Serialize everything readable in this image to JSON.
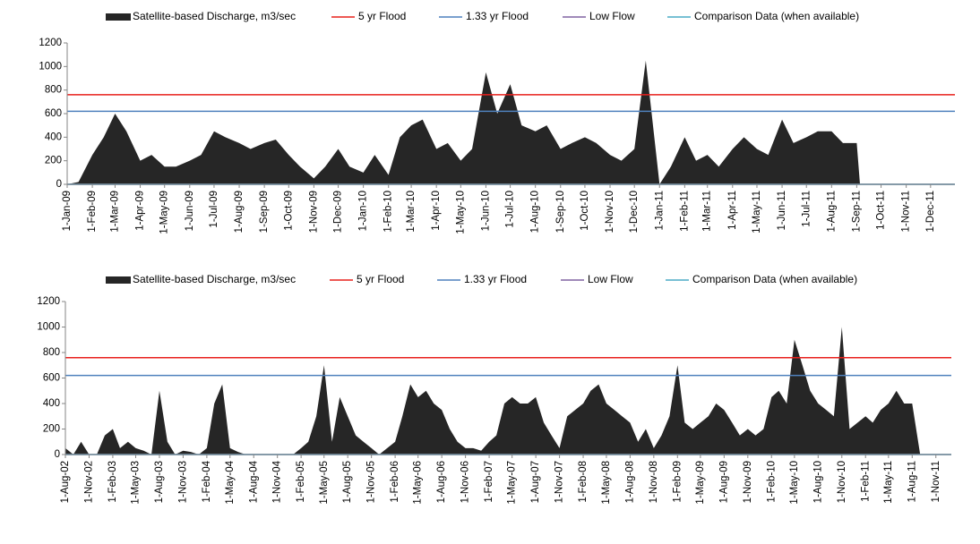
{
  "chart_data": [
    {
      "type": "area",
      "xlim": [
        "2009-01-01",
        "2011-12-31"
      ],
      "ylim": [
        0,
        1200
      ],
      "yticks": [
        0,
        200,
        400,
        600,
        800,
        1000,
        1200
      ],
      "xticks": [
        {
          "value": "2009-01-01",
          "label": "1-Jan-09"
        },
        {
          "value": "2009-02-01",
          "label": "1-Feb-09"
        },
        {
          "value": "2009-03-01",
          "label": "1-Mar-09"
        },
        {
          "value": "2009-04-01",
          "label": "1-Apr-09"
        },
        {
          "value": "2009-05-01",
          "label": "1-May-09"
        },
        {
          "value": "2009-06-01",
          "label": "1-Jun-09"
        },
        {
          "value": "2009-07-01",
          "label": "1-Jul-09"
        },
        {
          "value": "2009-08-01",
          "label": "1-Aug-09"
        },
        {
          "value": "2009-09-01",
          "label": "1-Sep-09"
        },
        {
          "value": "2009-10-01",
          "label": "1-Oct-09"
        },
        {
          "value": "2009-11-01",
          "label": "1-Nov-09"
        },
        {
          "value": "2009-12-01",
          "label": "1-Dec-09"
        },
        {
          "value": "2010-01-01",
          "label": "1-Jan-10"
        },
        {
          "value": "2010-02-01",
          "label": "1-Feb-10"
        },
        {
          "value": "2010-03-01",
          "label": "1-Mar-10"
        },
        {
          "value": "2010-04-01",
          "label": "1-Apr-10"
        },
        {
          "value": "2010-05-01",
          "label": "1-May-10"
        },
        {
          "value": "2010-06-01",
          "label": "1-Jun-10"
        },
        {
          "value": "2010-07-01",
          "label": "1-Jul-10"
        },
        {
          "value": "2010-08-01",
          "label": "1-Aug-10"
        },
        {
          "value": "2010-09-01",
          "label": "1-Sep-10"
        },
        {
          "value": "2010-10-01",
          "label": "1-Oct-10"
        },
        {
          "value": "2010-11-01",
          "label": "1-Nov-10"
        },
        {
          "value": "2010-12-01",
          "label": "1-Dec-10"
        },
        {
          "value": "2011-01-01",
          "label": "1-Jan-11"
        },
        {
          "value": "2011-02-01",
          "label": "1-Feb-11"
        },
        {
          "value": "2011-03-01",
          "label": "1-Mar-11"
        },
        {
          "value": "2011-04-01",
          "label": "1-Apr-11"
        },
        {
          "value": "2011-05-01",
          "label": "1-May-11"
        },
        {
          "value": "2011-06-01",
          "label": "1-Jun-11"
        },
        {
          "value": "2011-07-01",
          "label": "1-Jul-11"
        },
        {
          "value": "2011-08-01",
          "label": "1-Aug-11"
        },
        {
          "value": "2011-09-01",
          "label": "1-Sep-11"
        },
        {
          "value": "2011-10-01",
          "label": "1-Oct-11"
        },
        {
          "value": "2011-11-01",
          "label": "1-Nov-11"
        },
        {
          "value": "2011-12-01",
          "label": "1-Dec-11"
        }
      ],
      "series": [
        {
          "name": "Satellite-based Discharge, m3/sec",
          "style": "area",
          "color": "#262626",
          "x": [
            "2009-01-01",
            "2009-01-15",
            "2009-02-01",
            "2009-02-15",
            "2009-03-01",
            "2009-03-15",
            "2009-04-01",
            "2009-04-15",
            "2009-05-01",
            "2009-05-15",
            "2009-06-01",
            "2009-06-15",
            "2009-07-01",
            "2009-07-15",
            "2009-08-01",
            "2009-08-15",
            "2009-09-01",
            "2009-09-15",
            "2009-10-01",
            "2009-10-15",
            "2009-11-01",
            "2009-11-15",
            "2009-12-01",
            "2009-12-15",
            "2010-01-01",
            "2010-01-15",
            "2010-02-01",
            "2010-02-15",
            "2010-03-01",
            "2010-03-15",
            "2010-04-01",
            "2010-04-15",
            "2010-05-01",
            "2010-05-15",
            "2010-06-01",
            "2010-06-15",
            "2010-07-01",
            "2010-07-15",
            "2010-08-01",
            "2010-08-15",
            "2010-09-01",
            "2010-09-15",
            "2010-10-01",
            "2010-10-15",
            "2010-11-01",
            "2010-11-15",
            "2010-12-01",
            "2010-12-15",
            "2011-01-01",
            "2011-01-15",
            "2011-02-01",
            "2011-02-15",
            "2011-03-01",
            "2011-03-15",
            "2011-04-01",
            "2011-04-15",
            "2011-05-01",
            "2011-05-15",
            "2011-06-01",
            "2011-06-15",
            "2011-07-01",
            "2011-07-15",
            "2011-08-01",
            "2011-08-15",
            "2011-09-01",
            "2011-09-05"
          ],
          "values": [
            0,
            20,
            250,
            400,
            600,
            450,
            200,
            250,
            150,
            150,
            200,
            250,
            450,
            400,
            350,
            300,
            350,
            380,
            250,
            150,
            50,
            150,
            300,
            150,
            100,
            250,
            80,
            400,
            500,
            550,
            300,
            350,
            200,
            300,
            950,
            600,
            850,
            500,
            450,
            500,
            300,
            350,
            400,
            350,
            250,
            200,
            300,
            1050,
            0,
            150,
            400,
            200,
            250,
            150,
            300,
            400,
            300,
            250,
            550,
            350,
            400,
            450,
            450,
            350,
            350,
            0
          ]
        },
        {
          "name": "5 yr Flood",
          "style": "line",
          "color": "#e8201c",
          "x": [
            "2009-01-01",
            "2011-12-31"
          ],
          "values": [
            760,
            760
          ]
        },
        {
          "name": "1.33 yr Flood",
          "style": "line",
          "color": "#4f81bd",
          "x": [
            "2009-01-01",
            "2011-12-31"
          ],
          "values": [
            620,
            620
          ]
        },
        {
          "name": "Low Flow",
          "style": "line",
          "color": "#8064a2",
          "x": [
            "2009-01-01",
            "2011-12-31"
          ],
          "values": [
            0,
            0
          ]
        },
        {
          "name": "Comparison Data (when available)",
          "style": "line",
          "color": "#4bacc6",
          "x": [
            "2009-01-01",
            "2011-12-31"
          ],
          "values": [
            0,
            0
          ]
        }
      ]
    },
    {
      "type": "area",
      "xlim": [
        "2002-08-01",
        "2011-12-31"
      ],
      "ylim": [
        0,
        1200
      ],
      "yticks": [
        0,
        200,
        400,
        600,
        800,
        1000,
        1200
      ],
      "xticks": [
        {
          "value": "2002-08-01",
          "label": "1-Aug-02"
        },
        {
          "value": "2002-11-01",
          "label": "1-Nov-02"
        },
        {
          "value": "2003-02-01",
          "label": "1-Feb-03"
        },
        {
          "value": "2003-05-01",
          "label": "1-May-03"
        },
        {
          "value": "2003-08-01",
          "label": "1-Aug-03"
        },
        {
          "value": "2003-11-01",
          "label": "1-Nov-03"
        },
        {
          "value": "2004-02-01",
          "label": "1-Feb-04"
        },
        {
          "value": "2004-05-01",
          "label": "1-May-04"
        },
        {
          "value": "2004-08-01",
          "label": "1-Aug-04"
        },
        {
          "value": "2004-11-01",
          "label": "1-Nov-04"
        },
        {
          "value": "2005-02-01",
          "label": "1-Feb-05"
        },
        {
          "value": "2005-05-01",
          "label": "1-May-05"
        },
        {
          "value": "2005-08-01",
          "label": "1-Aug-05"
        },
        {
          "value": "2005-11-01",
          "label": "1-Nov-05"
        },
        {
          "value": "2006-02-01",
          "label": "1-Feb-06"
        },
        {
          "value": "2006-05-01",
          "label": "1-May-06"
        },
        {
          "value": "2006-08-01",
          "label": "1-Aug-06"
        },
        {
          "value": "2006-11-01",
          "label": "1-Nov-06"
        },
        {
          "value": "2007-02-01",
          "label": "1-Feb-07"
        },
        {
          "value": "2007-05-01",
          "label": "1-May-07"
        },
        {
          "value": "2007-08-01",
          "label": "1-Aug-07"
        },
        {
          "value": "2007-11-01",
          "label": "1-Nov-07"
        },
        {
          "value": "2008-02-01",
          "label": "1-Feb-08"
        },
        {
          "value": "2008-05-01",
          "label": "1-May-08"
        },
        {
          "value": "2008-08-01",
          "label": "1-Aug-08"
        },
        {
          "value": "2008-11-01",
          "label": "1-Nov-08"
        },
        {
          "value": "2009-02-01",
          "label": "1-Feb-09"
        },
        {
          "value": "2009-05-01",
          "label": "1-May-09"
        },
        {
          "value": "2009-08-01",
          "label": "1-Aug-09"
        },
        {
          "value": "2009-11-01",
          "label": "1-Nov-09"
        },
        {
          "value": "2010-02-01",
          "label": "1-Feb-10"
        },
        {
          "value": "2010-05-01",
          "label": "1-May-10"
        },
        {
          "value": "2010-08-01",
          "label": "1-Aug-10"
        },
        {
          "value": "2010-11-01",
          "label": "1-Nov-10"
        },
        {
          "value": "2011-02-01",
          "label": "1-Feb-11"
        },
        {
          "value": "2011-05-01",
          "label": "1-May-11"
        },
        {
          "value": "2011-08-01",
          "label": "1-Aug-11"
        },
        {
          "value": "2011-11-01",
          "label": "1-Nov-11"
        }
      ],
      "series": [
        {
          "name": "Satellite-based Discharge, m3/sec",
          "style": "area",
          "color": "#262626",
          "x": [
            "2002-08-01",
            "2002-09-01",
            "2002-10-01",
            "2002-11-01",
            "2002-12-01",
            "2003-01-01",
            "2003-02-01",
            "2003-03-01",
            "2003-04-01",
            "2003-05-01",
            "2003-06-01",
            "2003-07-01",
            "2003-08-01",
            "2003-09-01",
            "2003-10-01",
            "2003-11-01",
            "2003-12-01",
            "2004-01-01",
            "2004-02-01",
            "2004-03-01",
            "2004-04-01",
            "2004-05-01",
            "2004-06-01",
            "2004-07-01",
            "2004-08-01",
            "2004-09-01",
            "2004-10-01",
            "2004-11-01",
            "2004-12-01",
            "2005-01-01",
            "2005-02-01",
            "2005-03-01",
            "2005-04-01",
            "2005-05-01",
            "2005-06-01",
            "2005-07-01",
            "2005-08-01",
            "2005-09-01",
            "2005-10-01",
            "2005-11-01",
            "2005-12-01",
            "2006-01-01",
            "2006-02-01",
            "2006-03-01",
            "2006-04-01",
            "2006-05-01",
            "2006-06-01",
            "2006-07-01",
            "2006-08-01",
            "2006-09-01",
            "2006-10-01",
            "2006-11-01",
            "2006-12-01",
            "2007-01-01",
            "2007-02-01",
            "2007-03-01",
            "2007-04-01",
            "2007-05-01",
            "2007-06-01",
            "2007-07-01",
            "2007-08-01",
            "2007-09-01",
            "2007-10-01",
            "2007-11-01",
            "2007-12-01",
            "2008-01-01",
            "2008-02-01",
            "2008-03-01",
            "2008-04-01",
            "2008-05-01",
            "2008-06-01",
            "2008-07-01",
            "2008-08-01",
            "2008-09-01",
            "2008-10-01",
            "2008-11-01",
            "2008-12-01",
            "2009-01-01",
            "2009-02-01",
            "2009-03-01",
            "2009-04-01",
            "2009-05-01",
            "2009-06-01",
            "2009-07-01",
            "2009-08-01",
            "2009-09-01",
            "2009-10-01",
            "2009-11-01",
            "2009-12-01",
            "2010-01-01",
            "2010-02-01",
            "2010-03-01",
            "2010-04-01",
            "2010-05-01",
            "2010-06-01",
            "2010-07-01",
            "2010-08-01",
            "2010-09-01",
            "2010-10-01",
            "2010-11-01",
            "2010-12-01",
            "2011-01-01",
            "2011-02-01",
            "2011-03-01",
            "2011-04-01",
            "2011-05-01",
            "2011-06-01",
            "2011-07-01",
            "2011-08-01",
            "2011-09-01"
          ],
          "values": [
            50,
            0,
            100,
            0,
            0,
            150,
            200,
            50,
            100,
            50,
            30,
            0,
            500,
            100,
            0,
            30,
            20,
            0,
            50,
            400,
            550,
            50,
            20,
            0,
            0,
            0,
            0,
            0,
            0,
            0,
            50,
            100,
            300,
            700,
            100,
            450,
            300,
            150,
            100,
            50,
            0,
            50,
            100,
            300,
            550,
            450,
            500,
            400,
            350,
            200,
            100,
            50,
            50,
            30,
            100,
            150,
            400,
            450,
            400,
            400,
            450,
            250,
            150,
            50,
            300,
            350,
            400,
            500,
            550,
            400,
            350,
            300,
            250,
            100,
            200,
            50,
            150,
            300,
            700,
            250,
            200,
            250,
            300,
            400,
            350,
            250,
            150,
            200,
            150,
            200,
            450,
            500,
            400,
            900,
            700,
            500,
            400,
            350,
            300,
            1000,
            200,
            250,
            300,
            250,
            350,
            400,
            500,
            400,
            400,
            0
          ]
        },
        {
          "name": "5 yr Flood",
          "style": "line",
          "color": "#e8201c",
          "x": [
            "2002-08-01",
            "2011-12-31"
          ],
          "values": [
            760,
            760
          ]
        },
        {
          "name": "1.33 yr Flood",
          "style": "line",
          "color": "#4f81bd",
          "x": [
            "2002-08-01",
            "2011-12-31"
          ],
          "values": [
            620,
            620
          ]
        },
        {
          "name": "Low Flow",
          "style": "line",
          "color": "#8064a2",
          "x": [
            "2002-08-01",
            "2011-12-31"
          ],
          "values": [
            0,
            0
          ]
        },
        {
          "name": "Comparison Data (when available)",
          "style": "line",
          "color": "#4bacc6",
          "x": [
            "2002-08-01",
            "2011-12-31"
          ],
          "values": [
            0,
            0
          ]
        }
      ]
    }
  ]
}
